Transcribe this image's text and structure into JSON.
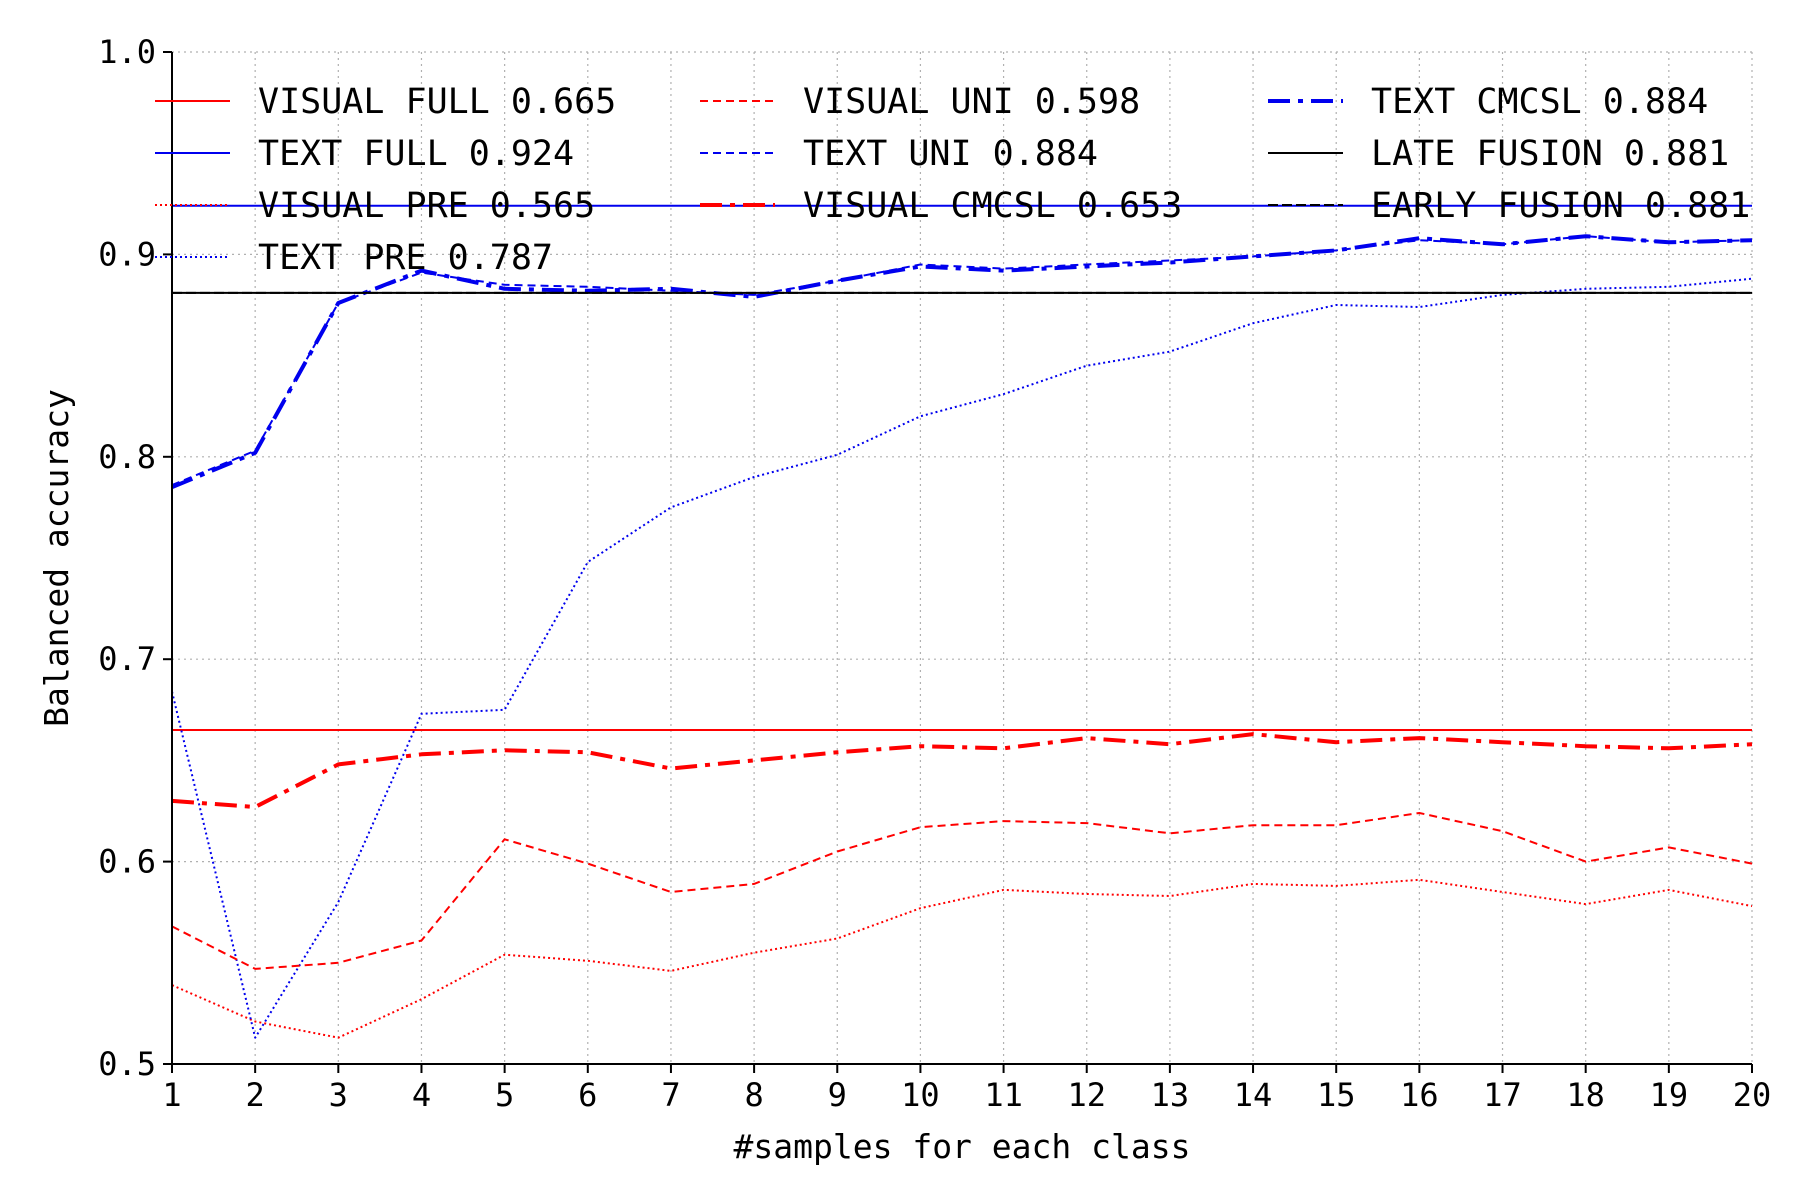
{
  "chart_data": {
    "type": "line",
    "title": "",
    "xlabel": "#samples for each class",
    "ylabel": "Balanced accuracy",
    "xlim": [
      1,
      20
    ],
    "ylim": [
      0.5,
      1.0
    ],
    "xticks": [
      "1",
      "2",
      "3",
      "4",
      "5",
      "6",
      "7",
      "8",
      "9",
      "10",
      "11",
      "12",
      "13",
      "14",
      "15",
      "16",
      "17",
      "18",
      "19",
      "20"
    ],
    "yticks": [
      "0.5",
      "0.6",
      "0.7",
      "0.8",
      "0.9",
      "1.0"
    ],
    "grid": true,
    "legend_position": "top",
    "x": [
      1,
      2,
      3,
      4,
      5,
      6,
      7,
      8,
      9,
      10,
      11,
      12,
      13,
      14,
      15,
      16,
      17,
      18,
      19,
      20
    ],
    "series": [
      {
        "name": "VISUAL FULL 0.665",
        "color": "#ff0000",
        "style": "solid",
        "width": "thin",
        "values": [
          0.665,
          0.665,
          0.665,
          0.665,
          0.665,
          0.665,
          0.665,
          0.665,
          0.665,
          0.665,
          0.665,
          0.665,
          0.665,
          0.665,
          0.665,
          0.665,
          0.665,
          0.665,
          0.665,
          0.665
        ]
      },
      {
        "name": "TEXT FULL 0.924",
        "color": "#0000ee",
        "style": "solid",
        "width": "thin",
        "values": [
          0.924,
          0.924,
          0.924,
          0.924,
          0.924,
          0.924,
          0.924,
          0.924,
          0.924,
          0.924,
          0.924,
          0.924,
          0.924,
          0.924,
          0.924,
          0.924,
          0.924,
          0.924,
          0.924,
          0.924
        ]
      },
      {
        "name": "VISUAL PRE 0.565",
        "color": "#ff0000",
        "style": "dotted",
        "width": "thin",
        "values": [
          0.539,
          0.521,
          0.513,
          0.532,
          0.554,
          0.551,
          0.546,
          0.555,
          0.562,
          0.577,
          0.586,
          0.584,
          0.583,
          0.589,
          0.588,
          0.591,
          0.585,
          0.579,
          0.586,
          0.578
        ]
      },
      {
        "name": "TEXT PRE 0.787",
        "color": "#0000ee",
        "style": "dotted",
        "width": "thin",
        "values": [
          0.684,
          0.513,
          0.58,
          0.673,
          0.675,
          0.748,
          0.775,
          0.79,
          0.801,
          0.82,
          0.831,
          0.845,
          0.852,
          0.866,
          0.875,
          0.874,
          0.88,
          0.883,
          0.884,
          0.888
        ]
      },
      {
        "name": "VISUAL UNI 0.598",
        "color": "#ff0000",
        "style": "dashed",
        "width": "thin",
        "values": [
          0.568,
          0.547,
          0.55,
          0.561,
          0.611,
          0.599,
          0.585,
          0.589,
          0.605,
          0.617,
          0.62,
          0.619,
          0.614,
          0.618,
          0.618,
          0.624,
          0.615,
          0.6,
          0.607,
          0.599
        ]
      },
      {
        "name": "TEXT UNI 0.884",
        "color": "#0000ee",
        "style": "dashed",
        "width": "thin",
        "values": [
          0.786,
          0.803,
          0.876,
          0.891,
          0.885,
          0.884,
          0.882,
          0.88,
          0.887,
          0.895,
          0.893,
          0.895,
          0.897,
          0.899,
          0.902,
          0.907,
          0.905,
          0.909,
          0.906,
          0.907
        ]
      },
      {
        "name": "VISUAL CMCSL 0.653",
        "color": "#ff0000",
        "style": "dashdot",
        "width": "thick",
        "values": [
          0.63,
          0.627,
          0.648,
          0.653,
          0.655,
          0.654,
          0.646,
          0.65,
          0.654,
          0.657,
          0.656,
          0.661,
          0.658,
          0.663,
          0.659,
          0.661,
          0.659,
          0.657,
          0.656,
          0.658
        ]
      },
      {
        "name": "TEXT CMCSL 0.884",
        "color": "#0000ee",
        "style": "dashdot",
        "width": "thick",
        "values": [
          0.785,
          0.802,
          0.876,
          0.892,
          0.883,
          0.882,
          0.883,
          0.879,
          0.887,
          0.894,
          0.892,
          0.894,
          0.896,
          0.899,
          0.902,
          0.908,
          0.905,
          0.909,
          0.906,
          0.907
        ]
      },
      {
        "name": "LATE FUSION 0.881",
        "color": "#000000",
        "style": "solid",
        "width": "thin",
        "values": [
          0.881,
          0.881,
          0.881,
          0.881,
          0.881,
          0.881,
          0.881,
          0.881,
          0.881,
          0.881,
          0.881,
          0.881,
          0.881,
          0.881,
          0.881,
          0.881,
          0.881,
          0.881,
          0.881,
          0.881
        ]
      },
      {
        "name": "EARLY FUSION 0.881",
        "color": "#000000",
        "style": "dashed",
        "width": "thin",
        "values": [
          0.881,
          0.881,
          0.881,
          0.881,
          0.881,
          0.881,
          0.881,
          0.881,
          0.881,
          0.881,
          0.881,
          0.881,
          0.881,
          0.881,
          0.881,
          0.881,
          0.881,
          0.881,
          0.881,
          0.881
        ]
      }
    ]
  }
}
